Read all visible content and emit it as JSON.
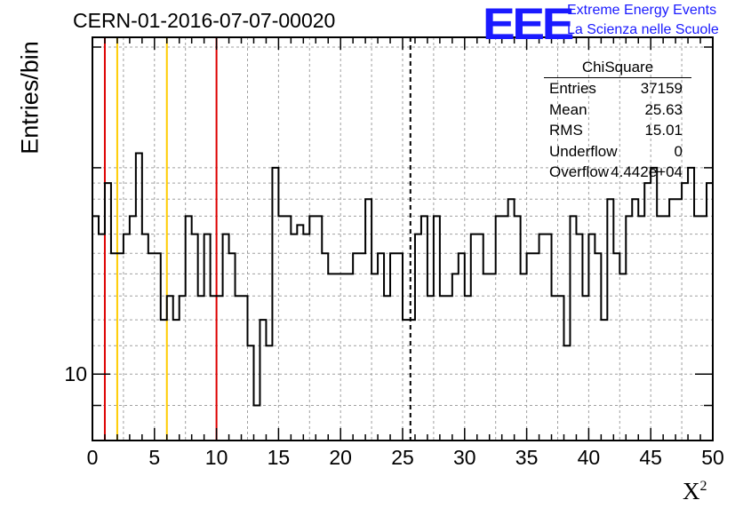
{
  "title": "CERN-01-2016-07-07-00020",
  "logo": {
    "text": "EEE",
    "line1": "Extreme Energy Events",
    "line2": "La Scienza nelle Scuole",
    "color": "#1a1aff"
  },
  "colors": {
    "red_line": "#dd0000",
    "yellow_line": "#ffcc00",
    "grid": "#a0a0a0"
  },
  "stats": {
    "title": "ChiSquare",
    "rows": [
      {
        "key": "Entries",
        "value": "37159"
      },
      {
        "key": "Mean",
        "value": "25.63"
      },
      {
        "key": "RMS",
        "value": "15.01"
      },
      {
        "key": "Underflow",
        "value": "0"
      },
      {
        "key": "Overflow",
        "value": "4.442e+04"
      }
    ]
  },
  "chart_data": {
    "type": "histogram",
    "title": "CERN-01-2016-07-07-00020",
    "xlabel": "X",
    "xlabel_sup": "2",
    "ylabel": "Entries/bin",
    "xlim": [
      0,
      50
    ],
    "ylim": [
      8,
      31
    ],
    "yscale": "log",
    "grid": true,
    "bin_width": 0.5,
    "x_ticks": [
      0,
      5,
      10,
      15,
      20,
      25,
      30,
      35,
      40,
      45,
      50
    ],
    "y_tick_labels": [
      {
        "value": 10,
        "label": "10"
      }
    ],
    "values": [
      17,
      16,
      19,
      15,
      15,
      16,
      17,
      21,
      16,
      15,
      15,
      12,
      13,
      12,
      13,
      17,
      16,
      13,
      16,
      13,
      13,
      16,
      15,
      13,
      13,
      11,
      9,
      12,
      11,
      20,
      17,
      17,
      16,
      16.5,
      16,
      17,
      17,
      15,
      14,
      14,
      14,
      14,
      15,
      15,
      18,
      14,
      15,
      13,
      15,
      15,
      12,
      12,
      16,
      17,
      13,
      17,
      13,
      13,
      14,
      15,
      13,
      16,
      16,
      14,
      14,
      17,
      17,
      18,
      17,
      14,
      15,
      15,
      16,
      16,
      13,
      13,
      11,
      17,
      16,
      13,
      16,
      15,
      12,
      18,
      15,
      14,
      17,
      18,
      17,
      19,
      20,
      17,
      17,
      18,
      18,
      19,
      20,
      17,
      17,
      19
    ],
    "vertical_lines": [
      {
        "x": 1,
        "color": "red",
        "style": "solid"
      },
      {
        "x": 2,
        "color": "yellow",
        "style": "solid"
      },
      {
        "x": 6,
        "color": "yellow",
        "style": "solid"
      },
      {
        "x": 10,
        "color": "red",
        "style": "solid"
      },
      {
        "x": 25.63,
        "color": "black",
        "style": "dashed"
      }
    ]
  }
}
